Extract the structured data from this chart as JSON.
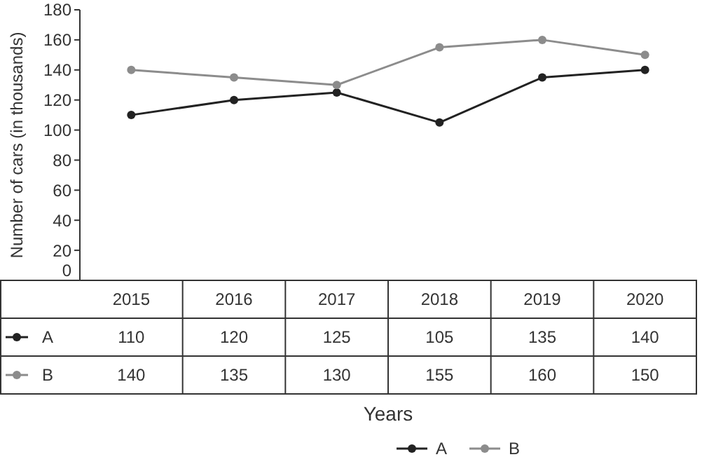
{
  "chart_data": {
    "type": "line",
    "xlabel": "Years",
    "ylabel": "Number of cars (in thousands)",
    "categories": [
      "2015",
      "2016",
      "2017",
      "2018",
      "2019",
      "2020"
    ],
    "series": [
      {
        "name": "A",
        "color": "#222222",
        "values": [
          110,
          120,
          125,
          105,
          135,
          140
        ]
      },
      {
        "name": "B",
        "color": "#8c8c8c",
        "values": [
          140,
          135,
          130,
          155,
          160,
          150
        ]
      }
    ],
    "ylim": [
      0,
      180
    ],
    "yticks": [
      0,
      20,
      40,
      60,
      80,
      100,
      120,
      140,
      160,
      180
    ],
    "marker": "circle",
    "line_style": "solid",
    "data_labels": true,
    "legend": "bottom",
    "grid": false
  }
}
